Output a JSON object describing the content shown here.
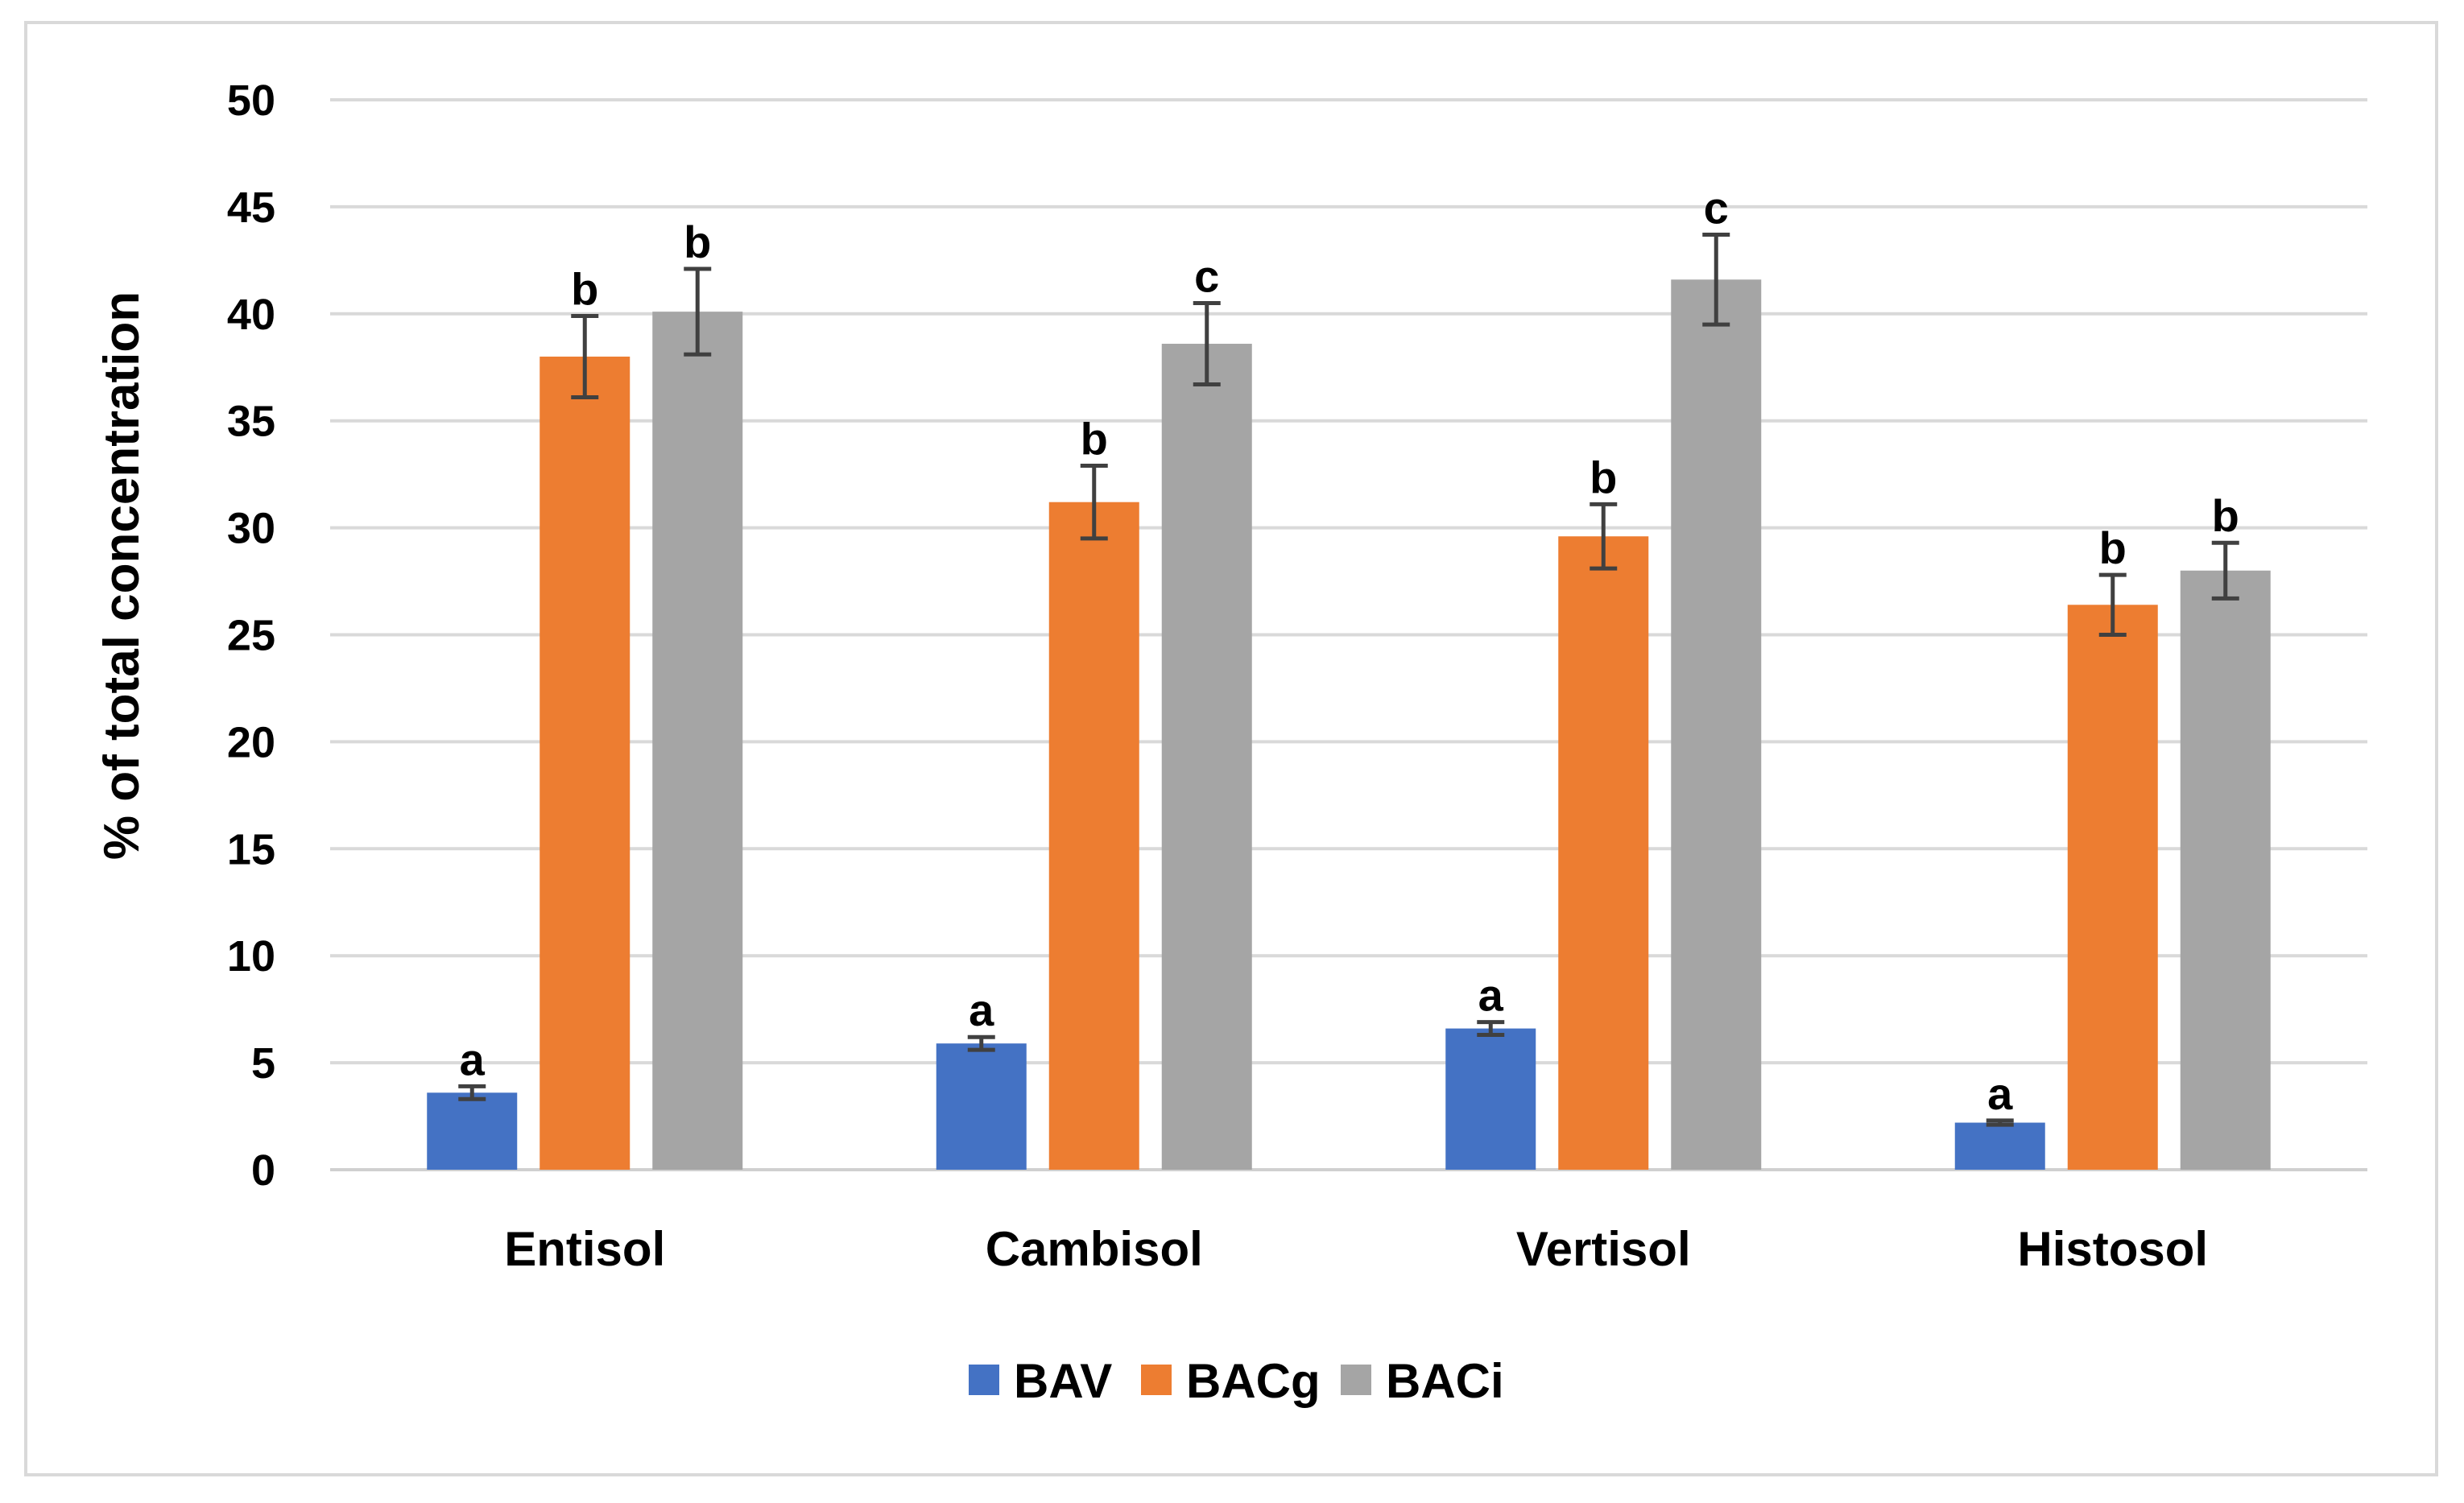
{
  "chart_data": {
    "type": "bar",
    "title": "",
    "xlabel": "",
    "ylabel": "% of total concentration",
    "ylim": [
      0,
      50
    ],
    "yticks": [
      "0",
      "5",
      "10",
      "15",
      "20",
      "25",
      "30",
      "35",
      "40",
      "45",
      "50"
    ],
    "grid": true,
    "legend_position": "bottom",
    "categories": [
      "Entisol",
      "Cambisol",
      "Vertisol",
      "Histosol"
    ],
    "series": [
      {
        "name": "BAV",
        "color": "#4472c4",
        "values": [
          3.6,
          5.9,
          6.6,
          2.2
        ],
        "errors": [
          0.3,
          0.3,
          0.3,
          0.1
        ],
        "letters": [
          "a",
          "a",
          "a",
          "a"
        ]
      },
      {
        "name": "BACg",
        "color": "#ed7d31",
        "values": [
          38.0,
          31.2,
          29.6,
          26.4
        ],
        "errors": [
          1.9,
          1.7,
          1.5,
          1.4
        ],
        "letters": [
          "b",
          "b",
          "b",
          "b"
        ]
      },
      {
        "name": "BACi",
        "color": "#a5a5a5",
        "values": [
          40.1,
          38.6,
          41.6,
          28.0
        ],
        "errors": [
          2.0,
          1.9,
          2.1,
          1.3
        ],
        "letters": [
          "b",
          "c",
          "c",
          "b"
        ]
      }
    ]
  }
}
